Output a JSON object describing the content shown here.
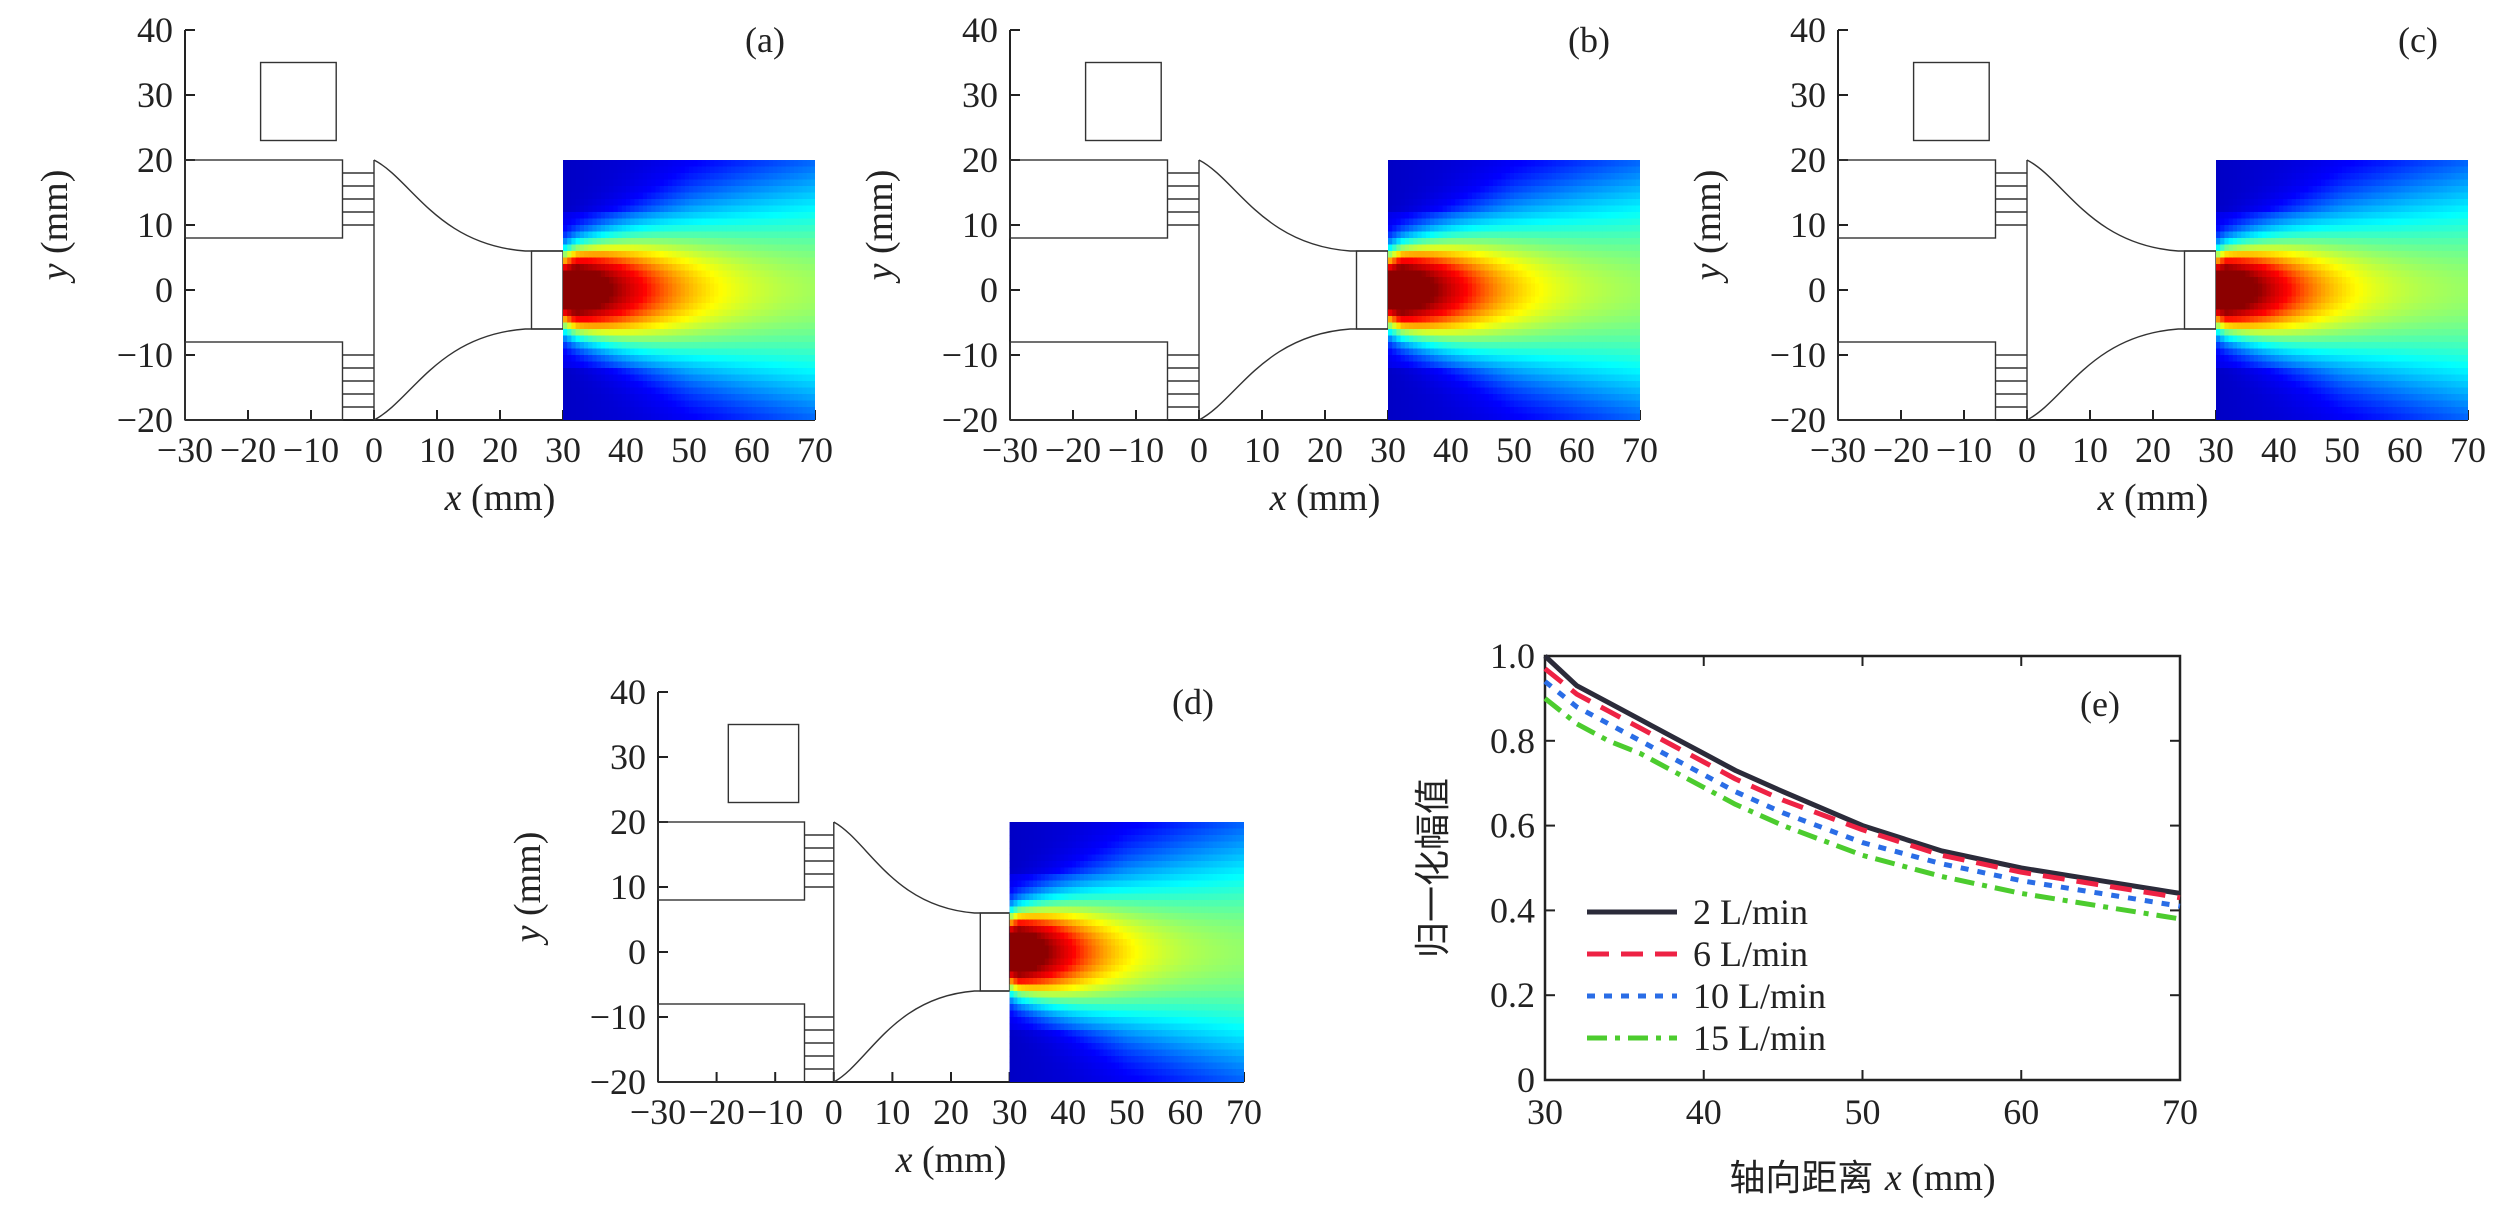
{
  "chart_data": [
    {
      "type": "heatmap",
      "panel_label": "(a)",
      "xlabel_var": "x",
      "xlabel_unit": " (mm)",
      "ylabel_var": "y",
      "ylabel_unit": " (mm)",
      "xlim": [
        -30,
        70
      ],
      "ylim": [
        -20,
        40
      ],
      "xticks": [
        "−30",
        "−20",
        "−10",
        "0",
        "10",
        "20",
        "30",
        "40",
        "50",
        "60",
        "70"
      ],
      "yticks": [
        "−20",
        "−10",
        "0",
        "10",
        "20",
        "30",
        "40"
      ],
      "field_extent_x": [
        30,
        70
      ],
      "field_extent_y": [
        -20,
        20
      ],
      "jet_peak_x": 32,
      "jet_decay_length": 11,
      "colormap": [
        "#00007f",
        "#0000ff",
        "#00ffff",
        "#ffff00",
        "#ff0000",
        "#7f0000"
      ]
    },
    {
      "type": "heatmap",
      "panel_label": "(b)",
      "xlabel_var": "x",
      "xlabel_unit": " (mm)",
      "ylabel_var": "y",
      "ylabel_unit": " (mm)",
      "xlim": [
        -30,
        70
      ],
      "ylim": [
        -20,
        40
      ],
      "xticks": [
        "−30",
        "−20",
        "−10",
        "0",
        "10",
        "20",
        "30",
        "40",
        "50",
        "60",
        "70"
      ],
      "yticks": [
        "−20",
        "−10",
        "0",
        "10",
        "20",
        "30",
        "40"
      ],
      "field_extent_x": [
        30,
        70
      ],
      "field_extent_y": [
        -20,
        20
      ],
      "jet_peak_x": 32,
      "jet_decay_length": 10.5,
      "colormap": [
        "#00007f",
        "#0000ff",
        "#00ffff",
        "#ffff00",
        "#ff0000",
        "#7f0000"
      ]
    },
    {
      "type": "heatmap",
      "panel_label": "(c)",
      "xlabel_var": "x",
      "xlabel_unit": " (mm)",
      "ylabel_var": "y",
      "ylabel_unit": " (mm)",
      "xlim": [
        -30,
        70
      ],
      "ylim": [
        -20,
        40
      ],
      "xticks": [
        "−30",
        "−20",
        "−10",
        "0",
        "10",
        "20",
        "30",
        "40",
        "50",
        "60",
        "70"
      ],
      "yticks": [
        "−20",
        "−10",
        "0",
        "10",
        "20",
        "30",
        "40"
      ],
      "field_extent_x": [
        30,
        70
      ],
      "field_extent_y": [
        -20,
        20
      ],
      "jet_peak_x": 31.5,
      "jet_decay_length": 10,
      "colormap": [
        "#00007f",
        "#0000ff",
        "#00ffff",
        "#ffff00",
        "#ff0000",
        "#7f0000"
      ]
    },
    {
      "type": "heatmap",
      "panel_label": "(d)",
      "xlabel_var": "x",
      "xlabel_unit": " (mm)",
      "ylabel_var": "y",
      "ylabel_unit": " (mm)",
      "xlim": [
        -30,
        70
      ],
      "ylim": [
        -20,
        40
      ],
      "xticks": [
        "−30",
        "−20",
        "−10",
        "0",
        "10",
        "20",
        "30",
        "40",
        "50",
        "60",
        "70"
      ],
      "yticks": [
        "−20",
        "−10",
        "0",
        "10",
        "20",
        "30",
        "40"
      ],
      "field_extent_x": [
        30,
        70
      ],
      "field_extent_y": [
        -20,
        20
      ],
      "jet_peak_x": 31.5,
      "jet_decay_length": 9.5,
      "colormap": [
        "#00007f",
        "#0000ff",
        "#00ffff",
        "#ffff00",
        "#ff0000",
        "#7f0000"
      ]
    },
    {
      "type": "line",
      "panel_label": "(e)",
      "xlabel_prefix": "轴向距离 ",
      "xlabel_var": "x",
      "xlabel_unit": " (mm)",
      "ylabel": "归一化幅值",
      "xlim": [
        30,
        70
      ],
      "ylim": [
        0,
        1.0
      ],
      "xticks": [
        "30",
        "40",
        "50",
        "60",
        "70"
      ],
      "xtick_values": [
        30,
        40,
        50,
        60,
        70
      ],
      "yticks": [
        "0",
        "0.2",
        "0.4",
        "0.6",
        "0.8",
        "1.0"
      ],
      "ytick_values": [
        0,
        0.2,
        0.4,
        0.6,
        0.8,
        1.0
      ],
      "legend_position": "bottom-left",
      "x": [
        30,
        32,
        34,
        36,
        38,
        40,
        42,
        45,
        50,
        55,
        60,
        65,
        70
      ],
      "series": [
        {
          "name": "2 L/min",
          "color": "#2b2b3a",
          "dash": "solid",
          "values": [
            1.0,
            0.93,
            0.89,
            0.85,
            0.81,
            0.77,
            0.73,
            0.68,
            0.6,
            0.54,
            0.5,
            0.47,
            0.44
          ]
        },
        {
          "name": "6 L/min",
          "color": "#ee2244",
          "dash": "dash",
          "values": [
            0.97,
            0.91,
            0.87,
            0.83,
            0.79,
            0.75,
            0.71,
            0.66,
            0.59,
            0.53,
            0.49,
            0.46,
            0.43
          ]
        },
        {
          "name": "10 L/min",
          "color": "#2a6de6",
          "dash": "dot",
          "values": [
            0.94,
            0.88,
            0.84,
            0.8,
            0.76,
            0.72,
            0.68,
            0.63,
            0.56,
            0.51,
            0.47,
            0.44,
            0.41
          ]
        },
        {
          "name": "15 L/min",
          "color": "#4ccc2e",
          "dash": "dashdot",
          "values": [
            0.9,
            0.84,
            0.8,
            0.77,
            0.73,
            0.69,
            0.65,
            0.6,
            0.53,
            0.48,
            0.44,
            0.41,
            0.38
          ]
        }
      ]
    }
  ]
}
